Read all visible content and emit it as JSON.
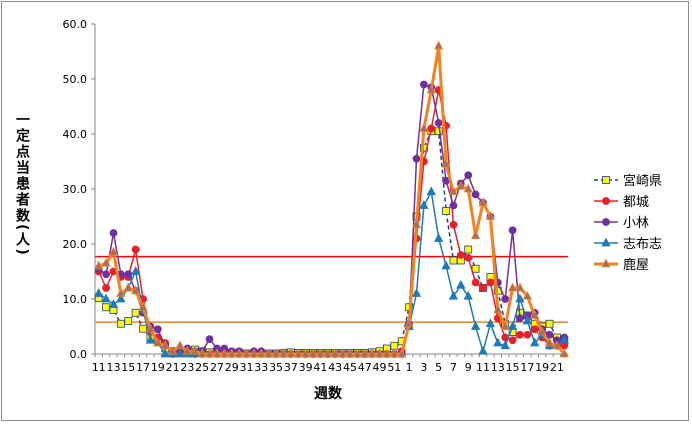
{
  "chart_data": {
    "type": "line",
    "title": "",
    "xlabel": "週数",
    "ylabel": "一定点当患者数(人)",
    "ylim": [
      0,
      60
    ],
    "yticks": [
      "0.0",
      "10.0",
      "20.0",
      "30.0",
      "40.0",
      "50.0",
      "60.0"
    ],
    "grid": false,
    "legend_position": "right",
    "x": [
      11,
      12,
      13,
      14,
      15,
      16,
      17,
      18,
      19,
      20,
      21,
      22,
      23,
      24,
      25,
      26,
      27,
      28,
      29,
      30,
      31,
      32,
      33,
      34,
      35,
      36,
      37,
      38,
      39,
      40,
      41,
      42,
      43,
      44,
      45,
      46,
      47,
      48,
      49,
      50,
      51,
      52,
      1,
      2,
      3,
      4,
      5,
      6,
      7,
      8,
      9,
      10,
      11,
      12,
      13,
      14,
      15,
      16,
      17,
      18,
      19,
      20,
      21,
      22
    ],
    "xtick_labels": [
      "11",
      "",
      "13",
      "",
      "15",
      "",
      "17",
      "",
      "19",
      "",
      "21",
      "",
      "23",
      "",
      "25",
      "",
      "27",
      "",
      "29",
      "",
      "31",
      "",
      "33",
      "",
      "35",
      "",
      "37",
      "",
      "39",
      "",
      "41",
      "",
      "43",
      "",
      "45",
      "",
      "47",
      "",
      "49",
      "",
      "51",
      "",
      "1",
      "",
      "3",
      "",
      "5",
      "",
      "7",
      "",
      "9",
      "",
      "11",
      "",
      "13",
      "",
      "15",
      "",
      "17",
      "",
      "19",
      "",
      "21",
      ""
    ],
    "series": [
      {
        "name": "宮崎県",
        "color": "#1f3a8a",
        "marker": "square",
        "marker_fill": "#ffff00",
        "dashed": true,
        "width": 1.5,
        "values": [
          10.2,
          8.5,
          8.0,
          5.5,
          6.0,
          7.5,
          4.6,
          3.0,
          2.5,
          1.0,
          0.5,
          0.5,
          0.3,
          0.8,
          0.5,
          0.3,
          0.2,
          0.2,
          0.2,
          0.2,
          0.1,
          0.1,
          0.1,
          0.1,
          0.1,
          0.2,
          0.3,
          0.2,
          0.2,
          0.2,
          0.2,
          0.2,
          0.2,
          0.2,
          0.2,
          0.2,
          0.2,
          0.3,
          0.5,
          1.0,
          1.5,
          2.3,
          8.5,
          25.0,
          37.5,
          40.5,
          40.5,
          26.0,
          17.0,
          17.0,
          19.0,
          15.5,
          12.0,
          14.0,
          11.5,
          5.5,
          4.0,
          7.5,
          7.0,
          5.5,
          5.0,
          5.5,
          3.0,
          2.5
        ]
      },
      {
        "name": "都城",
        "color": "#e8202a",
        "marker": "circle",
        "marker_fill": "#e8202a",
        "dashed": false,
        "width": 1.5,
        "values": [
          15.0,
          12.0,
          15.0,
          14.0,
          14.0,
          19.0,
          10.0,
          4.0,
          3.0,
          2.0,
          0.0,
          0.5,
          0.5,
          0.0,
          0.0,
          0.0,
          0.0,
          0.0,
          0.0,
          0.0,
          0.0,
          0.0,
          0.0,
          0.0,
          0.0,
          0.0,
          0.0,
          0.0,
          0.0,
          0.0,
          0.0,
          0.0,
          0.0,
          0.0,
          0.0,
          0.0,
          0.0,
          0.0,
          0.0,
          0.0,
          0.0,
          0.5,
          5.0,
          21.0,
          35.0,
          41.0,
          48.0,
          41.5,
          23.5,
          18.0,
          17.5,
          13.0,
          12.0,
          13.0,
          6.5,
          3.0,
          2.5,
          3.5,
          3.5,
          4.5,
          3.0,
          1.5,
          1.5,
          1.5
        ]
      },
      {
        "name": "小林",
        "color": "#7030a0",
        "marker": "circle",
        "marker_fill": "#7030a0",
        "dashed": false,
        "width": 1.5,
        "values": [
          15.5,
          14.5,
          22.0,
          14.5,
          14.5,
          11.5,
          7.5,
          5.0,
          4.5,
          1.5,
          0.5,
          1.0,
          1.0,
          0.5,
          0.5,
          2.7,
          1.0,
          1.0,
          0.5,
          0.5,
          0.0,
          0.5,
          0.5,
          0.0,
          0.0,
          0.0,
          0.0,
          0.0,
          0.0,
          0.0,
          0.0,
          0.0,
          0.0,
          0.0,
          0.0,
          0.0,
          0.0,
          0.0,
          0.0,
          0.0,
          0.0,
          0.0,
          5.5,
          35.5,
          49.0,
          48.5,
          42.0,
          31.5,
          27.0,
          31.0,
          32.5,
          29.0,
          27.5,
          25.0,
          13.0,
          10.0,
          22.5,
          6.5,
          7.0,
          7.5,
          4.5,
          3.5,
          2.5,
          3.0
        ]
      },
      {
        "name": "志布志",
        "color": "#1f7ab8",
        "marker": "triangle",
        "marker_fill": "#1f7ab8",
        "dashed": false,
        "width": 1.5,
        "values": [
          11.0,
          10.0,
          9.0,
          10.0,
          12.0,
          15.0,
          8.0,
          2.5,
          2.0,
          0.0,
          0.0,
          0.0,
          0.0,
          0.0,
          0.0,
          0.0,
          0.0,
          0.0,
          0.0,
          0.0,
          0.0,
          0.0,
          0.0,
          0.0,
          0.0,
          0.0,
          0.0,
          0.0,
          0.0,
          0.0,
          0.0,
          0.0,
          0.0,
          0.0,
          0.0,
          0.0,
          0.0,
          0.0,
          0.0,
          0.0,
          0.0,
          0.0,
          5.0,
          11.0,
          27.0,
          29.5,
          21.0,
          16.0,
          10.5,
          12.5,
          10.5,
          5.0,
          0.5,
          5.5,
          2.0,
          1.5,
          5.0,
          10.0,
          6.0,
          2.0,
          3.5,
          1.5,
          1.5,
          2.5
        ]
      },
      {
        "name": "鹿屋",
        "color": "#f58220",
        "marker": "triangle",
        "marker_fill": "#a07060",
        "dashed": false,
        "width": 3,
        "values": [
          16.0,
          16.5,
          18.5,
          11.0,
          12.0,
          11.5,
          8.5,
          4.5,
          2.0,
          1.5,
          0.5,
          1.5,
          0.5,
          0.5,
          0.0,
          0.0,
          0.0,
          0.0,
          0.0,
          0.0,
          0.0,
          0.0,
          0.0,
          0.0,
          0.0,
          0.0,
          0.0,
          0.0,
          0.0,
          0.0,
          0.0,
          0.0,
          0.0,
          0.0,
          0.0,
          0.0,
          0.0,
          0.0,
          0.0,
          0.0,
          0.0,
          0.0,
          5.5,
          23.5,
          41.0,
          48.0,
          56.0,
          34.5,
          29.5,
          30.5,
          30.0,
          21.5,
          27.5,
          25.0,
          8.0,
          5.0,
          12.0,
          12.0,
          10.5,
          7.0,
          4.0,
          2.0,
          1.5,
          0.0
        ]
      }
    ],
    "reference_lines": [
      {
        "value": 17.7,
        "color": "#ff0000"
      },
      {
        "value": 5.8,
        "color": "#f58220"
      }
    ]
  }
}
